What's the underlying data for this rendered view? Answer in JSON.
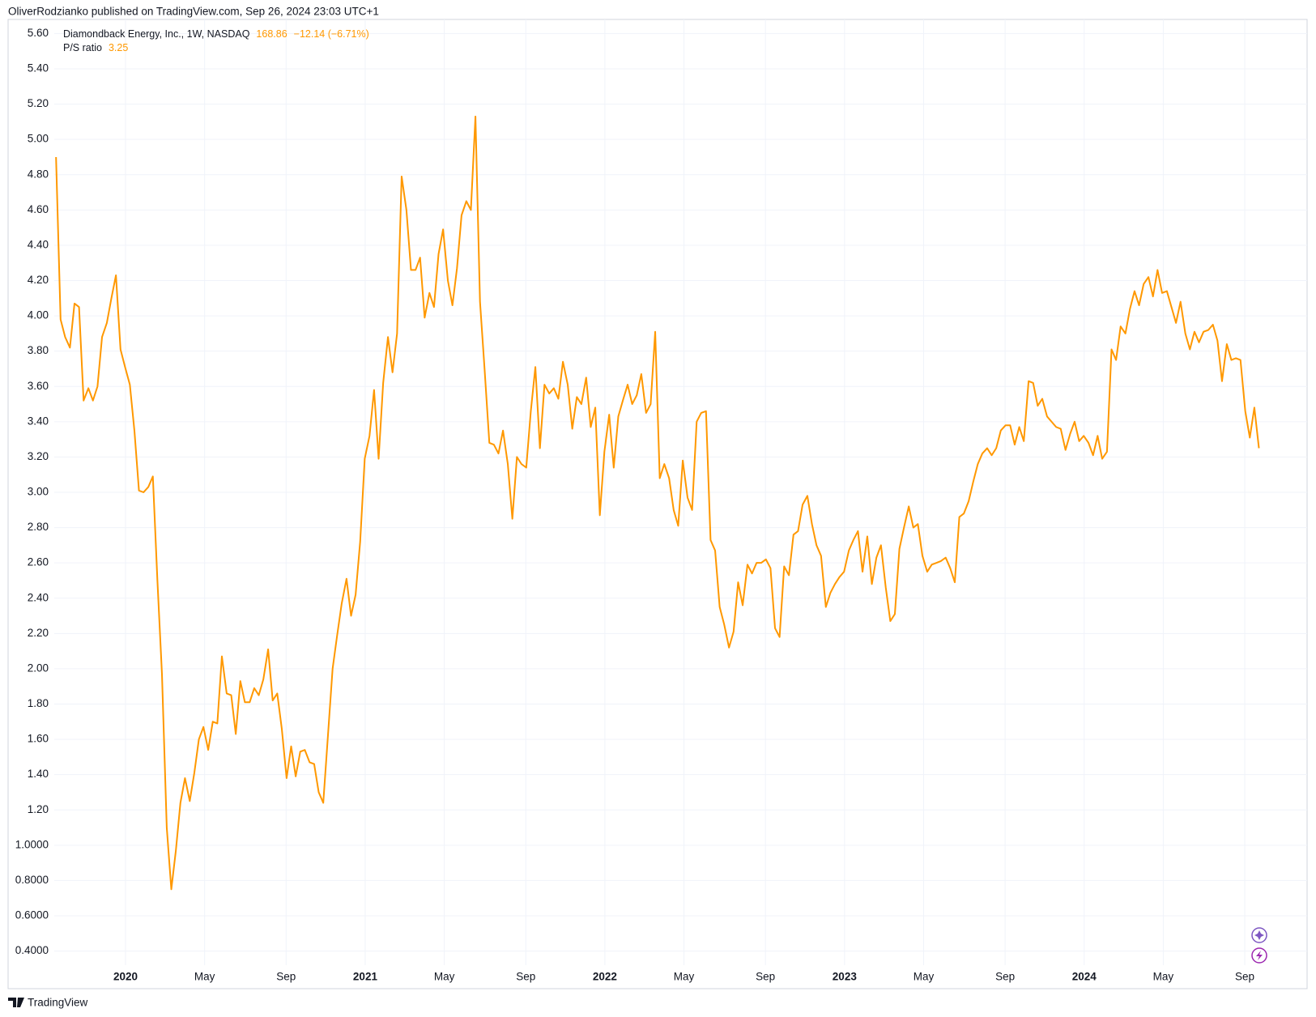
{
  "header": "OliverRodzianko published on TradingView.com, Sep 26, 2024 23:03 UTC+1",
  "footer": "TradingView",
  "chart_data": {
    "type": "line",
    "symbol": "Diamondback Energy, Inc., 1W, NASDAQ",
    "price": 168.86,
    "change": "−12.14 (−6.71%)",
    "grid": true,
    "xlim": [
      2019.51,
      2024.93
    ],
    "ylim": [
      0.32,
      5.68
    ],
    "xticks": [
      2020,
      {
        "value": 2020.33,
        "label": "May"
      },
      {
        "value": 2020.67,
        "label": "Sep"
      },
      2021,
      {
        "value": 2021.33,
        "label": "May"
      },
      {
        "value": 2021.67,
        "label": "Sep"
      },
      2022,
      {
        "value": 2022.33,
        "label": "May"
      },
      {
        "value": 2022.67,
        "label": "Sep"
      },
      2023,
      {
        "value": 2023.33,
        "label": "May"
      },
      {
        "value": 2023.67,
        "label": "Sep"
      },
      2024,
      {
        "value": 2024.33,
        "label": "May"
      },
      {
        "value": 2024.67,
        "label": "Sep"
      }
    ],
    "yticks": [
      {
        "value": 0.4,
        "label": "0.4000"
      },
      {
        "value": 0.6,
        "label": "0.6000"
      },
      {
        "value": 0.8,
        "label": "0.8000"
      },
      {
        "value": 1.0,
        "label": "1.0000"
      },
      {
        "value": 1.2,
        "label": "1.20"
      },
      {
        "value": 1.4,
        "label": "1.40"
      },
      {
        "value": 1.6,
        "label": "1.60"
      },
      {
        "value": 1.8,
        "label": "1.80"
      },
      {
        "value": 2.0,
        "label": "2.00"
      },
      {
        "value": 2.2,
        "label": "2.20"
      },
      {
        "value": 2.4,
        "label": "2.40"
      },
      {
        "value": 2.6,
        "label": "2.60"
      },
      {
        "value": 2.8,
        "label": "2.80"
      },
      {
        "value": 3.0,
        "label": "3.00"
      },
      {
        "value": 3.2,
        "label": "3.20"
      },
      {
        "value": 3.4,
        "label": "3.40"
      },
      {
        "value": 3.6,
        "label": "3.60"
      },
      {
        "value": 3.8,
        "label": "3.80"
      },
      {
        "value": 4.0,
        "label": "4.00"
      },
      {
        "value": 4.2,
        "label": "4.20"
      },
      {
        "value": 4.4,
        "label": "4.40"
      },
      {
        "value": 4.6,
        "label": "4.60"
      },
      {
        "value": 4.8,
        "label": "4.80"
      },
      {
        "value": 5.0,
        "label": "5.00"
      },
      {
        "value": 5.2,
        "label": "5.20"
      },
      {
        "value": 5.4,
        "label": "5.40"
      },
      {
        "value": 5.6,
        "label": "5.60"
      }
    ],
    "x": [
      2019.71,
      2019.729,
      2019.748,
      2019.768,
      2019.787,
      2019.806,
      2019.825,
      2019.845,
      2019.864,
      2019.883,
      2019.902,
      2019.922,
      2019.941,
      2019.96,
      2019.979,
      2019.998,
      2020.018,
      2020.037,
      2020.056,
      2020.075,
      2020.095,
      2020.114,
      2020.133,
      2020.152,
      2020.172,
      2020.191,
      2020.21,
      2020.229,
      2020.248,
      2020.268,
      2020.287,
      2020.306,
      2020.325,
      2020.345,
      2020.364,
      2020.383,
      2020.402,
      2020.422,
      2020.441,
      2020.46,
      2020.479,
      2020.498,
      2020.518,
      2020.537,
      2020.556,
      2020.575,
      2020.595,
      2020.614,
      2020.633,
      2020.652,
      2020.672,
      2020.691,
      2020.71,
      2020.729,
      2020.748,
      2020.768,
      2020.787,
      2020.806,
      2020.825,
      2020.845,
      2020.864,
      2020.883,
      2020.902,
      2020.922,
      2020.941,
      2020.96,
      2020.979,
      2020.998,
      2021.018,
      2021.037,
      2021.056,
      2021.075,
      2021.095,
      2021.114,
      2021.133,
      2021.152,
      2021.172,
      2021.191,
      2021.21,
      2021.229,
      2021.248,
      2021.268,
      2021.287,
      2021.306,
      2021.325,
      2021.345,
      2021.364,
      2021.383,
      2021.402,
      2021.422,
      2021.441,
      2021.46,
      2021.479,
      2021.498,
      2021.518,
      2021.537,
      2021.556,
      2021.575,
      2021.595,
      2021.614,
      2021.633,
      2021.652,
      2021.672,
      2021.691,
      2021.71,
      2021.729,
      2021.748,
      2021.768,
      2021.787,
      2021.806,
      2021.825,
      2021.845,
      2021.864,
      2021.883,
      2021.902,
      2021.922,
      2021.941,
      2021.96,
      2021.979,
      2021.998,
      2022.018,
      2022.037,
      2022.056,
      2022.075,
      2022.095,
      2022.114,
      2022.133,
      2022.152,
      2022.172,
      2022.191,
      2022.21,
      2022.229,
      2022.248,
      2022.268,
      2022.287,
      2022.306,
      2022.325,
      2022.345,
      2022.364,
      2022.383,
      2022.402,
      2022.422,
      2022.441,
      2022.46,
      2022.479,
      2022.498,
      2022.518,
      2022.537,
      2022.556,
      2022.575,
      2022.595,
      2022.614,
      2022.633,
      2022.652,
      2022.672,
      2022.691,
      2022.71,
      2022.729,
      2022.748,
      2022.768,
      2022.787,
      2022.806,
      2022.825,
      2022.845,
      2022.864,
      2022.883,
      2022.902,
      2022.922,
      2022.941,
      2022.96,
      2022.979,
      2022.998,
      2023.018,
      2023.037,
      2023.056,
      2023.075,
      2023.095,
      2023.114,
      2023.133,
      2023.152,
      2023.172,
      2023.191,
      2023.21,
      2023.229,
      2023.248,
      2023.268,
      2023.287,
      2023.306,
      2023.325,
      2023.345,
      2023.364,
      2023.383,
      2023.402,
      2023.422,
      2023.441,
      2023.46,
      2023.479,
      2023.498,
      2023.518,
      2023.537,
      2023.556,
      2023.575,
      2023.595,
      2023.614,
      2023.633,
      2023.652,
      2023.672,
      2023.691,
      2023.71,
      2023.729,
      2023.748,
      2023.768,
      2023.787,
      2023.806,
      2023.825,
      2023.845,
      2023.864,
      2023.883,
      2023.902,
      2023.922,
      2023.941,
      2023.96,
      2023.979,
      2023.998,
      2024.018,
      2024.037,
      2024.056,
      2024.075,
      2024.095,
      2024.114,
      2024.133,
      2024.152,
      2024.172,
      2024.191,
      2024.21,
      2024.229,
      2024.248,
      2024.268,
      2024.287,
      2024.306,
      2024.325,
      2024.345,
      2024.364,
      2024.383,
      2024.402,
      2024.422,
      2024.441,
      2024.46,
      2024.479,
      2024.498,
      2024.518,
      2024.537,
      2024.556,
      2024.575,
      2024.595,
      2024.614,
      2024.633,
      2024.652,
      2024.672,
      2024.691,
      2024.71,
      2024.729
    ],
    "series": [
      {
        "name": "P/S ratio",
        "color": "#ff9800",
        "values": [
          4.9,
          3.98,
          3.88,
          3.82,
          4.07,
          4.05,
          3.52,
          3.59,
          3.52,
          3.6,
          3.88,
          3.96,
          4.1,
          4.23,
          3.81,
          3.71,
          3.61,
          3.35,
          3.01,
          3.0,
          3.03,
          3.09,
          2.5,
          1.97,
          1.1,
          0.75,
          0.97,
          1.24,
          1.38,
          1.25,
          1.41,
          1.6,
          1.67,
          1.54,
          1.7,
          1.69,
          2.07,
          1.86,
          1.85,
          1.63,
          1.93,
          1.81,
          1.81,
          1.89,
          1.85,
          1.94,
          2.11,
          1.82,
          1.86,
          1.66,
          1.38,
          1.56,
          1.39,
          1.53,
          1.54,
          1.47,
          1.46,
          1.3,
          1.24,
          1.63,
          2.0,
          2.19,
          2.37,
          2.51,
          2.3,
          2.42,
          2.72,
          3.19,
          3.32,
          3.58,
          3.19,
          3.62,
          3.88,
          3.68,
          3.9,
          4.79,
          4.6,
          4.26,
          4.26,
          4.33,
          3.99,
          4.13,
          4.05,
          4.35,
          4.49,
          4.2,
          4.06,
          4.27,
          4.57,
          4.65,
          4.6,
          5.13,
          4.08,
          3.7,
          3.28,
          3.27,
          3.22,
          3.35,
          3.16,
          2.85,
          3.2,
          3.16,
          3.14,
          3.46,
          3.71,
          3.25,
          3.61,
          3.56,
          3.59,
          3.53,
          3.74,
          3.61,
          3.36,
          3.54,
          3.5,
          3.65,
          3.37,
          3.48,
          2.87,
          3.23,
          3.44,
          3.14,
          3.43,
          3.52,
          3.61,
          3.5,
          3.55,
          3.67,
          3.45,
          3.5,
          3.91,
          3.08,
          3.16,
          3.08,
          2.9,
          2.81,
          3.18,
          2.97,
          2.9,
          3.4,
          3.45,
          3.46,
          2.73,
          2.67,
          2.35,
          2.25,
          2.12,
          2.21,
          2.49,
          2.36,
          2.59,
          2.54,
          2.6,
          2.6,
          2.62,
          2.57,
          2.23,
          2.18,
          2.58,
          2.53,
          2.76,
          2.78,
          2.93,
          2.98,
          2.82,
          2.7,
          2.64,
          2.35,
          2.43,
          2.48,
          2.52,
          2.55,
          2.67,
          2.73,
          2.78,
          2.55,
          2.75,
          2.48,
          2.63,
          2.7,
          2.46,
          2.27,
          2.31,
          2.68,
          2.8,
          2.92,
          2.8,
          2.82,
          2.64,
          2.55,
          2.59,
          2.6,
          2.61,
          2.63,
          2.57,
          2.49,
          2.86,
          2.88,
          2.95,
          3.06,
          3.16,
          3.22,
          3.25,
          3.21,
          3.25,
          3.35,
          3.38,
          3.38,
          3.27,
          3.37,
          3.29,
          3.63,
          3.62,
          3.49,
          3.53,
          3.43,
          3.4,
          3.37,
          3.36,
          3.24,
          3.33,
          3.4,
          3.29,
          3.32,
          3.28,
          3.21,
          3.32,
          3.19,
          3.23,
          3.81,
          3.75,
          3.94,
          3.9,
          4.04,
          4.14,
          4.06,
          4.18,
          4.22,
          4.11,
          4.26,
          4.13,
          4.14,
          4.05,
          3.96,
          4.08,
          3.9,
          3.81,
          3.91,
          3.85,
          3.91,
          3.92,
          3.95,
          3.86,
          3.63,
          3.84,
          3.75,
          3.76,
          3.75,
          3.46,
          3.31,
          3.48,
          3.25
        ]
      }
    ]
  }
}
